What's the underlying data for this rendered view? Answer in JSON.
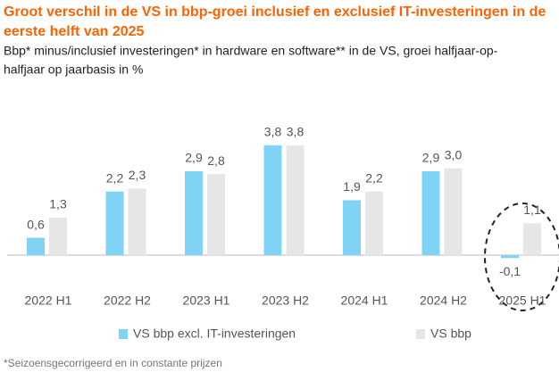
{
  "chart_data": {
    "type": "bar",
    "title": [
      "Groot verschil in de VS in bbp-groei inclusief en exclusief IT-investeringen in de",
      "eerste helft van 2025"
    ],
    "subtitle": [
      "Bbp* minus/inclusief investeringen* in hardware en software** in de VS, groei halfjaar-op-",
      "halfjaar op jaarbasis in %"
    ],
    "categories": [
      "2022 H1",
      "2022 H2",
      "2023 H1",
      "2023 H2",
      "2024 H1",
      "2024 H2",
      "2025 H1"
    ],
    "series": [
      {
        "name": "VS bbp excl. IT-investeringen",
        "color": "#7fd3f4",
        "values": [
          0.6,
          2.2,
          2.9,
          3.8,
          1.9,
          2.9,
          -0.1
        ],
        "value_labels": [
          "0,6",
          "2,2",
          "2,9",
          "3,8",
          "1,9",
          "2,9",
          "-0,1"
        ]
      },
      {
        "name": "VS bbp",
        "color": "#e6e6e6",
        "values": [
          1.3,
          2.3,
          2.8,
          3.8,
          2.2,
          3.0,
          1.1
        ],
        "value_labels": [
          "1,3",
          "2,3",
          "2,8",
          "3,8",
          "2,2",
          "3,0",
          "1,1"
        ]
      }
    ],
    "footnote": "*Seizoensgecorrigeerd en in constante prijzen"
  }
}
